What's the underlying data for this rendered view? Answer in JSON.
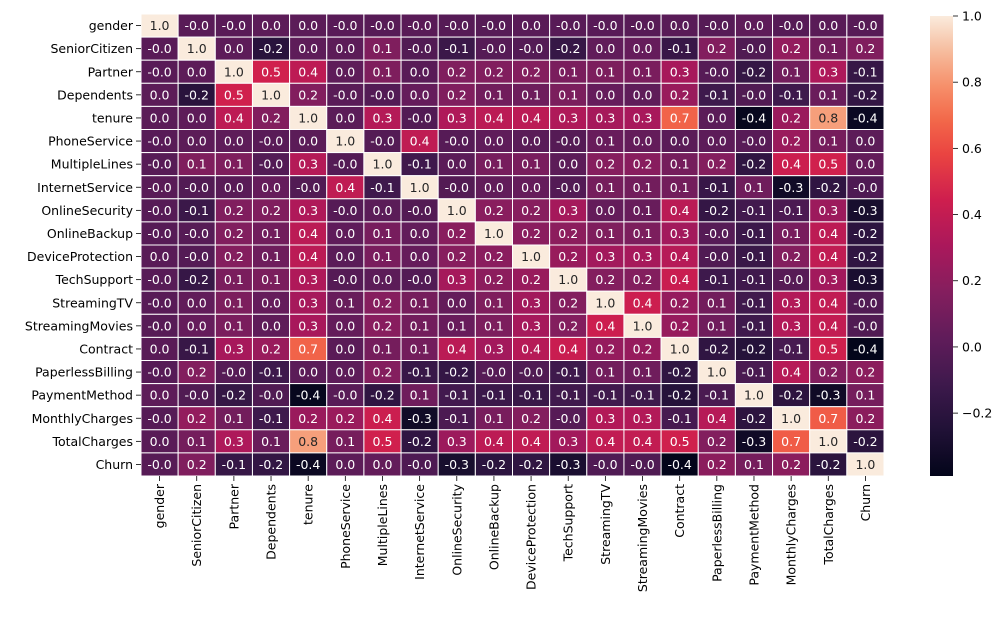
{
  "chart_data": {
    "type": "heatmap",
    "title": "",
    "xlabel": "",
    "ylabel": "",
    "colormap": "rocket",
    "value_range": [
      -0.39,
      1.0
    ],
    "colorbar_ticks": [
      "1.0",
      "0.8",
      "0.6",
      "0.4",
      "0.2",
      "0.0",
      "−0.2"
    ],
    "colorbar_tick_values": [
      1.0,
      0.8,
      0.6,
      0.4,
      0.2,
      0.0,
      -0.2
    ],
    "labels": [
      "gender",
      "SeniorCitizen",
      "Partner",
      "Dependents",
      "tenure",
      "PhoneService",
      "MultipleLines",
      "InternetService",
      "OnlineSecurity",
      "OnlineBackup",
      "DeviceProtection",
      "TechSupport",
      "StreamingTV",
      "StreamingMovies",
      "Contract",
      "PaperlessBilling",
      "PaymentMethod",
      "MonthlyCharges",
      "TotalCharges",
      "Churn"
    ],
    "annotations": [
      [
        "1.0",
        "-0.0",
        "-0.0",
        "0.0",
        "0.0",
        "-0.0",
        "-0.0",
        "-0.0",
        "-0.0",
        "-0.0",
        "0.0",
        "-0.0",
        "-0.0",
        "-0.0",
        "0.0",
        "-0.0",
        "0.0",
        "-0.0",
        "0.0",
        "-0.0"
      ],
      [
        "-0.0",
        "1.0",
        "0.0",
        "-0.2",
        "0.0",
        "0.0",
        "0.1",
        "-0.0",
        "-0.1",
        "-0.0",
        "-0.0",
        "-0.2",
        "0.0",
        "0.0",
        "-0.1",
        "0.2",
        "-0.0",
        "0.2",
        "0.1",
        "0.2"
      ],
      [
        "-0.0",
        "0.0",
        "1.0",
        "0.5",
        "0.4",
        "0.0",
        "0.1",
        "0.0",
        "0.2",
        "0.2",
        "0.2",
        "0.1",
        "0.1",
        "0.1",
        "0.3",
        "-0.0",
        "-0.2",
        "0.1",
        "0.3",
        "-0.1"
      ],
      [
        "0.0",
        "-0.2",
        "0.5",
        "1.0",
        "0.2",
        "-0.0",
        "-0.0",
        "0.0",
        "0.2",
        "0.1",
        "0.1",
        "0.1",
        "0.0",
        "0.0",
        "0.2",
        "-0.1",
        "-0.0",
        "-0.1",
        "0.1",
        "-0.2"
      ],
      [
        "0.0",
        "0.0",
        "0.4",
        "0.2",
        "1.0",
        "0.0",
        "0.3",
        "-0.0",
        "0.3",
        "0.4",
        "0.4",
        "0.3",
        "0.3",
        "0.3",
        "0.7",
        "0.0",
        "-0.4",
        "0.2",
        "0.8",
        "-0.4"
      ],
      [
        "-0.0",
        "0.0",
        "0.0",
        "-0.0",
        "0.0",
        "1.0",
        "-0.0",
        "0.4",
        "-0.0",
        "0.0",
        "0.0",
        "-0.0",
        "0.1",
        "0.0",
        "0.0",
        "0.0",
        "-0.0",
        "0.2",
        "0.1",
        "0.0"
      ],
      [
        "-0.0",
        "0.1",
        "0.1",
        "-0.0",
        "0.3",
        "-0.0",
        "1.0",
        "-0.1",
        "0.0",
        "0.1",
        "0.1",
        "0.0",
        "0.2",
        "0.2",
        "0.1",
        "0.2",
        "-0.2",
        "0.4",
        "0.5",
        "0.0"
      ],
      [
        "-0.0",
        "-0.0",
        "0.0",
        "0.0",
        "-0.0",
        "0.4",
        "-0.1",
        "1.0",
        "-0.0",
        "0.0",
        "0.0",
        "-0.0",
        "0.1",
        "0.1",
        "0.1",
        "-0.1",
        "0.1",
        "-0.3",
        "-0.2",
        "-0.0"
      ],
      [
        "-0.0",
        "-0.1",
        "0.2",
        "0.2",
        "0.3",
        "-0.0",
        "0.0",
        "-0.0",
        "1.0",
        "0.2",
        "0.2",
        "0.3",
        "0.0",
        "0.1",
        "0.4",
        "-0.2",
        "-0.1",
        "-0.1",
        "0.3",
        "-0.3"
      ],
      [
        "-0.0",
        "-0.0",
        "0.2",
        "0.1",
        "0.4",
        "0.0",
        "0.1",
        "0.0",
        "0.2",
        "1.0",
        "0.2",
        "0.2",
        "0.1",
        "0.1",
        "0.3",
        "-0.0",
        "-0.1",
        "0.1",
        "0.4",
        "-0.2"
      ],
      [
        "0.0",
        "-0.0",
        "0.2",
        "0.1",
        "0.4",
        "0.0",
        "0.1",
        "0.0",
        "0.2",
        "0.2",
        "1.0",
        "0.2",
        "0.3",
        "0.3",
        "0.4",
        "-0.0",
        "-0.1",
        "0.2",
        "0.4",
        "-0.2"
      ],
      [
        "-0.0",
        "-0.2",
        "0.1",
        "0.1",
        "0.3",
        "-0.0",
        "0.0",
        "-0.0",
        "0.3",
        "0.2",
        "0.2",
        "1.0",
        "0.2",
        "0.2",
        "0.4",
        "-0.1",
        "-0.1",
        "-0.0",
        "0.3",
        "-0.3"
      ],
      [
        "-0.0",
        "0.0",
        "0.1",
        "0.0",
        "0.3",
        "0.1",
        "0.2",
        "0.1",
        "0.0",
        "0.1",
        "0.3",
        "0.2",
        "1.0",
        "0.4",
        "0.2",
        "0.1",
        "-0.1",
        "0.3",
        "0.4",
        "-0.0"
      ],
      [
        "-0.0",
        "0.0",
        "0.1",
        "0.0",
        "0.3",
        "0.0",
        "0.2",
        "0.1",
        "0.1",
        "0.1",
        "0.3",
        "0.2",
        "0.4",
        "1.0",
        "0.2",
        "0.1",
        "-0.1",
        "0.3",
        "0.4",
        "-0.0"
      ],
      [
        "0.0",
        "-0.1",
        "0.3",
        "0.2",
        "0.7",
        "0.0",
        "0.1",
        "0.1",
        "0.4",
        "0.3",
        "0.4",
        "0.4",
        "0.2",
        "0.2",
        "1.0",
        "-0.2",
        "-0.2",
        "-0.1",
        "0.5",
        "-0.4"
      ],
      [
        "-0.0",
        "0.2",
        "-0.0",
        "-0.1",
        "0.0",
        "0.0",
        "0.2",
        "-0.1",
        "-0.2",
        "-0.0",
        "-0.0",
        "-0.1",
        "0.1",
        "0.1",
        "-0.2",
        "1.0",
        "-0.1",
        "0.4",
        "0.2",
        "0.2"
      ],
      [
        "0.0",
        "-0.0",
        "-0.2",
        "-0.0",
        "-0.4",
        "-0.0",
        "-0.2",
        "0.1",
        "-0.1",
        "-0.1",
        "-0.1",
        "-0.1",
        "-0.1",
        "-0.1",
        "-0.2",
        "-0.1",
        "1.0",
        "-0.2",
        "-0.3",
        "0.1"
      ],
      [
        "-0.0",
        "0.2",
        "0.1",
        "-0.1",
        "0.2",
        "0.2",
        "0.4",
        "-0.3",
        "-0.1",
        "0.1",
        "0.2",
        "-0.0",
        "0.3",
        "0.3",
        "-0.1",
        "0.4",
        "-0.2",
        "1.0",
        "0.7",
        "0.2"
      ],
      [
        "0.0",
        "0.1",
        "0.3",
        "0.1",
        "0.8",
        "0.1",
        "0.5",
        "-0.2",
        "0.3",
        "0.4",
        "0.4",
        "0.3",
        "0.4",
        "0.4",
        "0.5",
        "0.2",
        "-0.3",
        "0.7",
        "1.0",
        "-0.2"
      ],
      [
        "-0.0",
        "0.2",
        "-0.1",
        "-0.2",
        "-0.4",
        "0.0",
        "0.0",
        "-0.0",
        "-0.3",
        "-0.2",
        "-0.2",
        "-0.3",
        "-0.0",
        "-0.0",
        "-0.4",
        "0.2",
        "0.1",
        "0.2",
        "-0.2",
        "1.0"
      ]
    ],
    "color_values": [
      [
        1.0,
        -0.002,
        -0.002,
        0.01,
        0.005,
        -0.006,
        -0.009,
        -0.001,
        -0.015,
        -0.012,
        0.0,
        -0.007,
        -0.006,
        -0.009,
        0.0,
        -0.012,
        0.017,
        -0.014,
        0.0,
        -0.009
      ],
      [
        -0.002,
        1.0,
        0.016,
        -0.21,
        0.017,
        0.009,
        0.146,
        -0.032,
        -0.128,
        -0.013,
        -0.021,
        -0.151,
        0.031,
        0.048,
        -0.142,
        0.157,
        -0.038,
        0.22,
        0.103,
        0.151
      ],
      [
        -0.002,
        0.016,
        1.0,
        0.453,
        0.38,
        0.018,
        0.142,
        0.0,
        0.15,
        0.153,
        0.166,
        0.127,
        0.137,
        0.129,
        0.295,
        -0.014,
        -0.155,
        0.097,
        0.319,
        -0.15
      ],
      [
        0.01,
        -0.21,
        0.453,
        1.0,
        0.16,
        -0.002,
        -0.025,
        0.045,
        0.152,
        0.091,
        0.08,
        0.133,
        0.047,
        0.021,
        0.243,
        -0.111,
        -0.04,
        -0.114,
        0.064,
        -0.164
      ],
      [
        0.005,
        0.017,
        0.38,
        0.16,
        1.0,
        0.008,
        0.343,
        -0.03,
        0.325,
        0.37,
        0.371,
        0.323,
        0.29,
        0.297,
        0.671,
        0.006,
        -0.37,
        0.248,
        0.826,
        -0.352
      ],
      [
        -0.006,
        0.009,
        0.018,
        -0.002,
        0.008,
        1.0,
        -0.021,
        0.387,
        -0.015,
        0.024,
        0.004,
        -0.019,
        0.056,
        0.043,
        0.002,
        0.016,
        -0.005,
        0.247,
        0.113,
        0.012
      ],
      [
        -0.009,
        0.146,
        0.142,
        -0.025,
        0.343,
        -0.021,
        1.0,
        -0.109,
        0.007,
        0.117,
        0.122,
        0.011,
        0.175,
        0.181,
        0.11,
        0.165,
        -0.177,
        0.433,
        0.453,
        0.038
      ],
      [
        -0.001,
        -0.032,
        0.0,
        0.045,
        -0.03,
        0.387,
        -0.109,
        1.0,
        -0.028,
        0.036,
        0.045,
        -0.026,
        0.108,
        0.098,
        0.1,
        -0.139,
        0.084,
        -0.323,
        -0.175,
        -0.047
      ],
      [
        -0.015,
        -0.128,
        0.15,
        0.152,
        0.325,
        -0.015,
        0.007,
        -0.028,
        1.0,
        0.185,
        0.176,
        0.285,
        0.044,
        0.056,
        0.367,
        -0.158,
        -0.097,
        -0.054,
        0.254,
        -0.289
      ],
      [
        -0.012,
        -0.013,
        0.153,
        0.091,
        0.37,
        0.024,
        0.117,
        0.036,
        0.185,
        1.0,
        0.188,
        0.196,
        0.147,
        0.137,
        0.28,
        -0.013,
        -0.124,
        0.12,
        0.375,
        -0.196
      ],
      [
        0.0,
        -0.021,
        0.166,
        0.08,
        0.371,
        0.004,
        0.122,
        0.045,
        0.176,
        0.188,
        1.0,
        0.24,
        0.276,
        0.289,
        0.35,
        -0.038,
        -0.135,
        0.164,
        0.389,
        -0.178
      ],
      [
        -0.007,
        -0.151,
        0.127,
        0.133,
        0.323,
        -0.019,
        0.011,
        -0.026,
        0.285,
        0.196,
        0.24,
        1.0,
        0.161,
        0.162,
        0.425,
        -0.114,
        -0.104,
        -0.008,
        0.276,
        -0.282
      ],
      [
        -0.006,
        0.031,
        0.137,
        0.047,
        0.29,
        0.056,
        0.175,
        0.108,
        0.044,
        0.147,
        0.276,
        0.161,
        1.0,
        0.435,
        0.227,
        0.097,
        -0.104,
        0.337,
        0.392,
        -0.037
      ],
      [
        -0.009,
        0.048,
        0.129,
        0.021,
        0.297,
        0.043,
        0.181,
        0.098,
        0.056,
        0.137,
        0.289,
        0.162,
        0.435,
        1.0,
        0.231,
        0.084,
        -0.112,
        0.336,
        0.398,
        -0.038
      ],
      [
        0.0,
        -0.142,
        0.295,
        0.243,
        0.671,
        0.002,
        0.11,
        0.1,
        0.367,
        0.28,
        0.35,
        0.425,
        0.227,
        0.231,
        1.0,
        -0.176,
        -0.227,
        -0.074,
        0.45,
        -0.397
      ],
      [
        -0.012,
        0.157,
        -0.014,
        -0.111,
        0.006,
        0.016,
        0.165,
        -0.139,
        -0.158,
        -0.013,
        -0.038,
        -0.114,
        0.097,
        0.084,
        -0.176,
        1.0,
        -0.062,
        0.352,
        0.158,
        0.192
      ],
      [
        0.017,
        -0.038,
        -0.155,
        -0.04,
        -0.37,
        -0.005,
        -0.177,
        0.084,
        -0.097,
        -0.124,
        -0.135,
        -0.104,
        -0.104,
        -0.112,
        -0.227,
        -0.062,
        1.0,
        -0.193,
        -0.33,
        0.107
      ],
      [
        -0.014,
        0.22,
        0.097,
        -0.114,
        0.248,
        0.247,
        0.433,
        -0.323,
        -0.054,
        0.12,
        0.164,
        -0.008,
        0.337,
        0.336,
        -0.074,
        0.352,
        -0.193,
        1.0,
        0.651,
        0.193
      ],
      [
        0.0,
        0.103,
        0.319,
        0.064,
        0.826,
        0.113,
        0.453,
        -0.175,
        0.254,
        0.375,
        0.389,
        0.276,
        0.392,
        0.398,
        0.45,
        0.158,
        -0.33,
        0.651,
        1.0,
        -0.199
      ],
      [
        -0.009,
        0.151,
        -0.15,
        -0.164,
        -0.352,
        0.012,
        0.038,
        -0.047,
        -0.289,
        -0.196,
        -0.178,
        -0.282,
        -0.037,
        -0.038,
        -0.397,
        0.192,
        0.107,
        0.193,
        -0.199,
        1.0
      ]
    ],
    "grid": false,
    "legend": "colorbar-right"
  }
}
